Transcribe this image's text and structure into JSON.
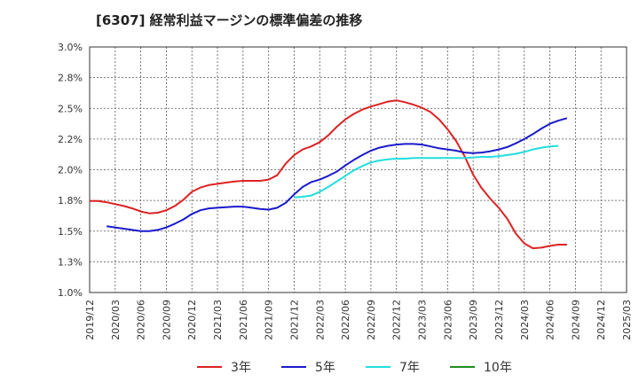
{
  "chart_data": {
    "type": "line",
    "title": "[6307]  経常利益マージンの標準偏差の推移",
    "x_ticks": [
      "2019/12",
      "2020/03",
      "2020/06",
      "2020/09",
      "2020/12",
      "2021/03",
      "2021/06",
      "2021/09",
      "2021/12",
      "2022/03",
      "2022/06",
      "2022/09",
      "2022/12",
      "2023/03",
      "2023/06",
      "2023/09",
      "2023/12",
      "2024/03",
      "2024/06",
      "2024/09",
      "2024/12",
      "2025/03"
    ],
    "y_ticks": [
      "1.0%",
      "1.3%",
      "1.5%",
      "1.8%",
      "2.0%",
      "2.2%",
      "2.5%",
      "2.8%",
      "3.0%"
    ],
    "ylim": [
      1.0,
      3.0
    ],
    "grid": true,
    "legend_position": "bottom",
    "series": [
      {
        "name": "3年",
        "color": "#dd2222",
        "start_index": 0,
        "values": [
          1.745,
          1.745,
          1.735,
          1.72,
          1.705,
          1.685,
          1.66,
          1.645,
          1.65,
          1.67,
          1.705,
          1.755,
          1.82,
          1.855,
          1.875,
          1.885,
          1.895,
          1.905,
          1.91,
          1.91,
          1.91,
          1.92,
          1.955,
          2.05,
          2.12,
          2.165,
          2.19,
          2.225,
          2.28,
          2.35,
          2.41,
          2.455,
          2.49,
          2.515,
          2.535,
          2.555,
          2.565,
          2.55,
          2.53,
          2.505,
          2.47,
          2.41,
          2.33,
          2.235,
          2.11,
          1.96,
          1.85,
          1.765,
          1.69,
          1.6,
          1.48,
          1.4,
          1.36,
          1.365,
          1.38,
          1.39,
          1.39
        ]
      },
      {
        "name": "5年",
        "color": "#1a1acc",
        "start_index": 2,
        "values": [
          1.54,
          1.53,
          1.52,
          1.51,
          1.5,
          1.5,
          1.51,
          1.53,
          1.56,
          1.595,
          1.64,
          1.67,
          1.685,
          1.69,
          1.695,
          1.7,
          1.7,
          1.69,
          1.68,
          1.675,
          1.69,
          1.73,
          1.8,
          1.86,
          1.9,
          1.92,
          1.95,
          1.985,
          2.035,
          2.08,
          2.12,
          2.155,
          2.18,
          2.195,
          2.205,
          2.21,
          2.21,
          2.205,
          2.19,
          2.175,
          2.165,
          2.155,
          2.14,
          2.135,
          2.14,
          2.15,
          2.165,
          2.185,
          2.215,
          2.25,
          2.29,
          2.335,
          2.375,
          2.4,
          2.42
        ]
      },
      {
        "name": "7年",
        "color": "#22dddd",
        "start_index": 24,
        "values": [
          1.775,
          1.78,
          1.79,
          1.82,
          1.86,
          1.905,
          1.95,
          1.995,
          2.03,
          2.06,
          2.075,
          2.085,
          2.09,
          2.09,
          2.095,
          2.095,
          2.095,
          2.095,
          2.095,
          2.095,
          2.095,
          2.1,
          2.105,
          2.105,
          2.11,
          2.12,
          2.13,
          2.145,
          2.165,
          2.18,
          2.19,
          2.195
        ]
      },
      {
        "name": "10年",
        "color": "#1e8c1e",
        "start_index": 0,
        "values": []
      }
    ]
  }
}
